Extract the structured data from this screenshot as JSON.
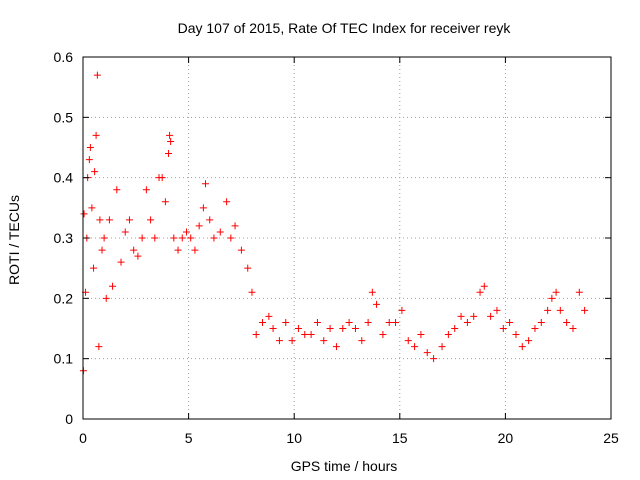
{
  "chart_data": {
    "type": "scatter",
    "title": "Day 107 of 2015, Rate Of TEC Index for receiver reyk",
    "xlabel": "GPS time / hours",
    "ylabel": "ROTI / TECUs",
    "xlim": [
      0,
      25
    ],
    "ylim": [
      0,
      0.6
    ],
    "xticks": [
      0,
      5,
      10,
      15,
      20,
      25
    ],
    "yticks": [
      0,
      0.1,
      0.2,
      0.3,
      0.4,
      0.5,
      0.6
    ],
    "xtick_labels": [
      "0",
      "5",
      "10",
      "15",
      "20",
      "25"
    ],
    "ytick_labels": [
      "0",
      "0.1",
      "0.2",
      "0.3",
      "0.4",
      "0.5",
      "0.6"
    ],
    "grid": true,
    "marker": "+",
    "color": "#ff0000",
    "series": [
      {
        "name": "ROTI",
        "points": [
          [
            0.02,
            0.08
          ],
          [
            0.05,
            0.34
          ],
          [
            0.12,
            0.21
          ],
          [
            0.18,
            0.3
          ],
          [
            0.22,
            0.4
          ],
          [
            0.3,
            0.43
          ],
          [
            0.35,
            0.45
          ],
          [
            0.42,
            0.35
          ],
          [
            0.5,
            0.25
          ],
          [
            0.55,
            0.41
          ],
          [
            0.62,
            0.47
          ],
          [
            0.68,
            0.57
          ],
          [
            0.75,
            0.12
          ],
          [
            0.8,
            0.33
          ],
          [
            0.9,
            0.28
          ],
          [
            1.0,
            0.3
          ],
          [
            1.1,
            0.2
          ],
          [
            1.25,
            0.33
          ],
          [
            1.4,
            0.22
          ],
          [
            1.6,
            0.38
          ],
          [
            1.8,
            0.26
          ],
          [
            2.0,
            0.31
          ],
          [
            2.2,
            0.33
          ],
          [
            2.4,
            0.28
          ],
          [
            2.6,
            0.27
          ],
          [
            2.8,
            0.3
          ],
          [
            3.0,
            0.38
          ],
          [
            3.2,
            0.33
          ],
          [
            3.4,
            0.3
          ],
          [
            3.6,
            0.4
          ],
          [
            3.75,
            0.4
          ],
          [
            3.9,
            0.36
          ],
          [
            4.05,
            0.44
          ],
          [
            4.1,
            0.47
          ],
          [
            4.15,
            0.46
          ],
          [
            4.3,
            0.3
          ],
          [
            4.5,
            0.28
          ],
          [
            4.7,
            0.3
          ],
          [
            4.9,
            0.31
          ],
          [
            5.1,
            0.3
          ],
          [
            5.3,
            0.28
          ],
          [
            5.5,
            0.32
          ],
          [
            5.7,
            0.35
          ],
          [
            5.8,
            0.39
          ],
          [
            6.0,
            0.33
          ],
          [
            6.2,
            0.3
          ],
          [
            6.5,
            0.31
          ],
          [
            6.8,
            0.36
          ],
          [
            7.0,
            0.3
          ],
          [
            7.2,
            0.32
          ],
          [
            7.5,
            0.28
          ],
          [
            7.8,
            0.25
          ],
          [
            8.0,
            0.21
          ],
          [
            8.2,
            0.14
          ],
          [
            8.5,
            0.16
          ],
          [
            8.8,
            0.17
          ],
          [
            9.0,
            0.15
          ],
          [
            9.3,
            0.13
          ],
          [
            9.6,
            0.16
          ],
          [
            9.9,
            0.13
          ],
          [
            10.2,
            0.15
          ],
          [
            10.5,
            0.14
          ],
          [
            10.8,
            0.14
          ],
          [
            11.1,
            0.16
          ],
          [
            11.4,
            0.13
          ],
          [
            11.7,
            0.15
          ],
          [
            12.0,
            0.12
          ],
          [
            12.3,
            0.15
          ],
          [
            12.6,
            0.16
          ],
          [
            12.9,
            0.15
          ],
          [
            13.2,
            0.13
          ],
          [
            13.5,
            0.16
          ],
          [
            13.7,
            0.21
          ],
          [
            13.9,
            0.19
          ],
          [
            14.2,
            0.14
          ],
          [
            14.5,
            0.16
          ],
          [
            14.8,
            0.16
          ],
          [
            15.1,
            0.18
          ],
          [
            15.4,
            0.13
          ],
          [
            15.7,
            0.12
          ],
          [
            16.0,
            0.14
          ],
          [
            16.3,
            0.11
          ],
          [
            16.6,
            0.1
          ],
          [
            17.0,
            0.12
          ],
          [
            17.3,
            0.14
          ],
          [
            17.6,
            0.15
          ],
          [
            17.9,
            0.17
          ],
          [
            18.2,
            0.16
          ],
          [
            18.5,
            0.17
          ],
          [
            18.8,
            0.21
          ],
          [
            19.0,
            0.22
          ],
          [
            19.3,
            0.17
          ],
          [
            19.6,
            0.18
          ],
          [
            19.9,
            0.15
          ],
          [
            20.2,
            0.16
          ],
          [
            20.5,
            0.14
          ],
          [
            20.8,
            0.12
          ],
          [
            21.1,
            0.13
          ],
          [
            21.4,
            0.15
          ],
          [
            21.7,
            0.16
          ],
          [
            22.0,
            0.18
          ],
          [
            22.2,
            0.2
          ],
          [
            22.4,
            0.21
          ],
          [
            22.6,
            0.18
          ],
          [
            22.9,
            0.16
          ],
          [
            23.2,
            0.15
          ],
          [
            23.5,
            0.21
          ],
          [
            23.75,
            0.18
          ]
        ]
      }
    ]
  }
}
